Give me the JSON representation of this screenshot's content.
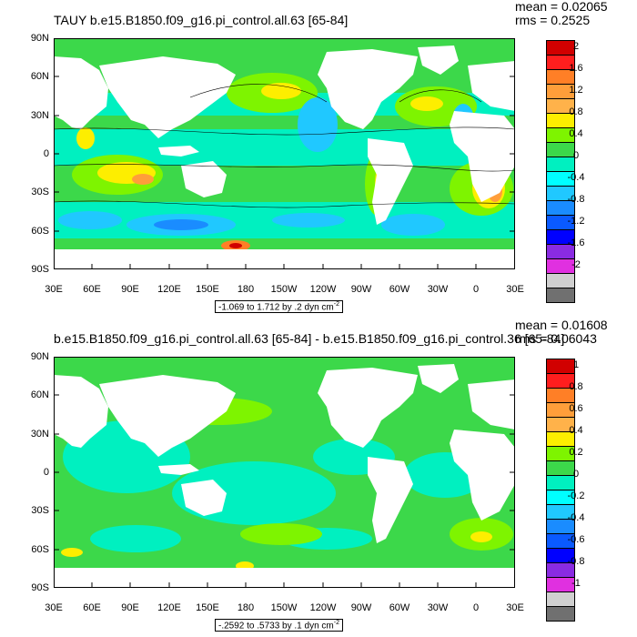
{
  "panels": [
    {
      "title": "TAUY b.e15.B1850.f09_g16.pi_control.all.63 [65-84]",
      "mean_label": "mean = 0.02065",
      "rms_label": "rms = 0.2525",
      "range_text": "-1.069 to 1.712 by .2 dyn cm",
      "range_exp": "-2",
      "y_ticks": [
        "90N",
        "60N",
        "30N",
        "0",
        "30S",
        "60S",
        "90S"
      ],
      "x_ticks": [
        "30E",
        "60E",
        "90E",
        "120E",
        "150E",
        "180",
        "150W",
        "120W",
        "90W",
        "60W",
        "30W",
        "0",
        "30E"
      ],
      "colorbar_labels": [
        "2",
        "1.6",
        "1.2",
        "0.8",
        "0.4",
        "0",
        "-0.4",
        "-0.8",
        "-1.2",
        "-1.6",
        "-2"
      ],
      "colorbar_colors": [
        "#d10000",
        "#ff1e1e",
        "#ff7f26",
        "#ff9e3a",
        "#ffb24a",
        "#fdee00",
        "#7ef400",
        "#3cd84a",
        "#00f0c0",
        "#00ffff",
        "#20c8ff",
        "#1a8cff",
        "#0a5aff",
        "#0000ff",
        "#8a2be2",
        "#e030e0",
        "#d0d0d0",
        "#707070"
      ]
    },
    {
      "title": "b.e15.B1850.f09_g16.pi_control.all.63 [65-84] - b.e15.B1850.f09_g16.pi_control.36 [65-84]",
      "mean_label": "mean = 0.01608",
      "rms_label": "rms = 0.06043",
      "range_text": "-.2592 to .5733 by .1 dyn cm",
      "range_exp": "-2",
      "y_ticks": [
        "90N",
        "60N",
        "30N",
        "0",
        "30S",
        "60S",
        "90S"
      ],
      "x_ticks": [
        "30E",
        "60E",
        "90E",
        "120E",
        "150E",
        "180",
        "150W",
        "120W",
        "90W",
        "60W",
        "30W",
        "0",
        "30E"
      ],
      "colorbar_labels": [
        "1",
        "0.8",
        "0.6",
        "0.4",
        "0.2",
        "0",
        "-0.2",
        "-0.4",
        "-0.6",
        "-0.8",
        "-1"
      ],
      "colorbar_colors": [
        "#d10000",
        "#ff1e1e",
        "#ff7f26",
        "#ff9e3a",
        "#ffb24a",
        "#fdee00",
        "#7ef400",
        "#3cd84a",
        "#00f0c0",
        "#00ffff",
        "#20c8ff",
        "#1a8cff",
        "#0a5aff",
        "#0000ff",
        "#8a2be2",
        "#e030e0",
        "#d0d0d0",
        "#707070"
      ]
    }
  ],
  "chart_data": [
    {
      "type": "heatmap",
      "title": "TAUY b.e15.B1850.f09_g16.pi_control.all.63 [65-84]",
      "xlabel": "",
      "ylabel": "",
      "x_range": [
        "30E",
        "30E"
      ],
      "y_range": [
        "90S",
        "90N"
      ],
      "mean": 0.02065,
      "rms": 0.2525,
      "contour_min": -1.069,
      "contour_max": 1.712,
      "contour_interval": 0.2,
      "units": "dyn cm-2",
      "colorbar_levels": [
        2,
        1.6,
        1.2,
        0.8,
        0.4,
        0,
        -0.4,
        -0.8,
        -1.2,
        -1.6,
        -2
      ]
    },
    {
      "type": "heatmap",
      "title": "b.e15.B1850.f09_g16.pi_control.all.63 [65-84] - b.e15.B1850.f09_g16.pi_control.36 [65-84]",
      "xlabel": "",
      "ylabel": "",
      "x_range": [
        "30E",
        "30E"
      ],
      "y_range": [
        "90S",
        "90N"
      ],
      "mean": 0.01608,
      "rms": 0.06043,
      "contour_min": -0.2592,
      "contour_max": 0.5733,
      "contour_interval": 0.1,
      "units": "dyn cm-2",
      "colorbar_levels": [
        1,
        0.8,
        0.6,
        0.4,
        0.2,
        0,
        -0.2,
        -0.4,
        -0.6,
        -0.8,
        -1
      ]
    }
  ]
}
